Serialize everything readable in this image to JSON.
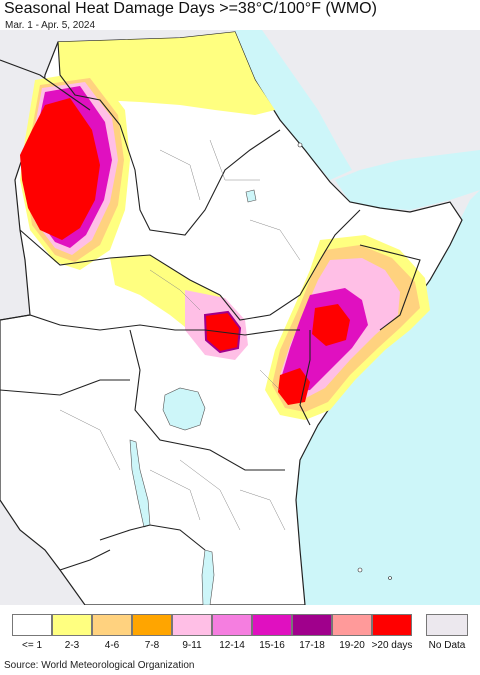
{
  "title": "Seasonal Heat Damage Days >=38°C/100°F (WMO)",
  "subtitle": "Mar. 1 - Apr. 5, 2024",
  "source": "Source: World Meteorological Organization",
  "colors": {
    "water": "#cdf6f9",
    "land_outside": "#ececf0",
    "land": "#ffffff",
    "border": "#222222",
    "admin": "#888888"
  },
  "legend": [
    {
      "label": "<= 1",
      "color": "#ffffff"
    },
    {
      "label": "2-3",
      "color": "#ffff80"
    },
    {
      "label": "4-6",
      "color": "#ffd27f"
    },
    {
      "label": "7-8",
      "color": "#ffa500"
    },
    {
      "label": "9-11",
      "color": "#ffbfe6"
    },
    {
      "label": "12-14",
      "color": "#f57ee0"
    },
    {
      "label": "15-16",
      "color": "#e010c0"
    },
    {
      "label": "17-18",
      "color": "#a0008c"
    },
    {
      "label": "19-20",
      "color": "#ff9a9a"
    },
    {
      "label": ">20 days",
      "color": "#ff0000"
    }
  ],
  "no_data": {
    "label": "No Data",
    "color": "#ece8ee"
  }
}
